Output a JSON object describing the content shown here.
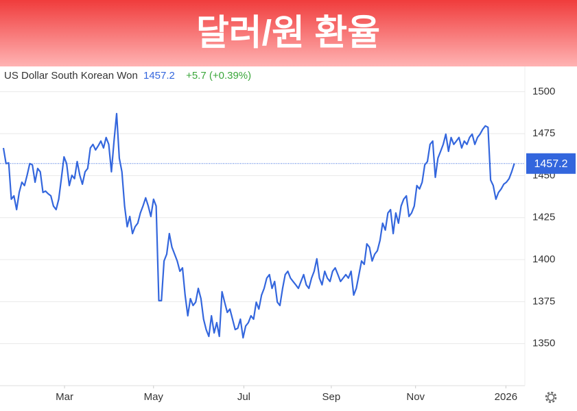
{
  "chart_data": {
    "type": "line",
    "title": "달러/원 환율",
    "change": "+5.7 (+0.39%)",
    "series": [
      {
        "name": "US Dollar South Korean Won",
        "color": "#3366dd",
        "values": [
          1466.5,
          1457.2,
          1457.6,
          1436.0,
          1438.0,
          1429.8,
          1440.0,
          1446.1,
          1444.1,
          1450.2,
          1457.2,
          1456.4,
          1446.1,
          1454.3,
          1452.3,
          1440.0,
          1440.8,
          1439.2,
          1438.0,
          1431.9,
          1429.8,
          1436.0,
          1448.2,
          1461.2,
          1457.2,
          1444.1,
          1450.2,
          1448.2,
          1458.4,
          1450.2,
          1444.9,
          1452.3,
          1454.3,
          1466.5,
          1468.6,
          1465.3,
          1467.8,
          1470.6,
          1466.5,
          1472.7,
          1468.6,
          1452.3,
          1470.6,
          1486.9,
          1460.4,
          1452.3,
          1431.9,
          1419.6,
          1425.7,
          1415.5,
          1419.6,
          1421.7,
          1427.8,
          1431.9,
          1436.8,
          1431.9,
          1425.7,
          1436.0,
          1431.9,
          1375.6,
          1375.6,
          1399.2,
          1403.3,
          1415.5,
          1407.4,
          1403.3,
          1399.2,
          1393.1,
          1395.1,
          1378.9,
          1366.6,
          1376.8,
          1372.7,
          1374.7,
          1382.9,
          1376.8,
          1364.6,
          1358.4,
          1354.3,
          1366.6,
          1356.4,
          1362.5,
          1354.3,
          1380.9,
          1374.7,
          1368.6,
          1370.6,
          1364.6,
          1358.4,
          1359.2,
          1364.6,
          1353.5,
          1360.5,
          1362.5,
          1366.6,
          1364.6,
          1374.7,
          1370.6,
          1378.9,
          1382.9,
          1389.0,
          1391.1,
          1382.9,
          1387.0,
          1374.7,
          1372.7,
          1382.9,
          1391.1,
          1393.1,
          1389.0,
          1387.0,
          1385.0,
          1382.9,
          1387.0,
          1391.1,
          1385.0,
          1382.9,
          1389.0,
          1393.1,
          1400.5,
          1389.0,
          1385.0,
          1393.1,
          1389.0,
          1387.0,
          1393.1,
          1395.1,
          1391.1,
          1387.0,
          1389.0,
          1391.1,
          1389.0,
          1393.1,
          1378.9,
          1382.9,
          1391.1,
          1399.2,
          1397.2,
          1409.4,
          1407.4,
          1399.2,
          1403.3,
          1405.3,
          1411.5,
          1421.7,
          1417.6,
          1427.8,
          1429.8,
          1415.5,
          1427.8,
          1421.7,
          1431.9,
          1436.0,
          1438.0,
          1425.7,
          1427.8,
          1431.9,
          1444.1,
          1442.1,
          1446.1,
          1456.4,
          1458.4,
          1468.6,
          1470.6,
          1449.0,
          1460.4,
          1464.5,
          1468.6,
          1474.7,
          1464.5,
          1472.7,
          1468.6,
          1470.6,
          1472.7,
          1466.5,
          1470.6,
          1468.6,
          1472.7,
          1474.7,
          1468.6,
          1472.7,
          1474.7,
          1477.6,
          1479.6,
          1478.8,
          1447.4,
          1444.1,
          1436.0,
          1440.0,
          1442.1,
          1444.9,
          1446.1,
          1448.2,
          1452.3,
          1457.2
        ]
      }
    ],
    "xlim": [
      -1.3,
      198
    ],
    "xticks": [
      {
        "value": 23.2,
        "label": "Mar"
      },
      {
        "value": 57,
        "label": "May"
      },
      {
        "value": 91.3,
        "label": "Jul"
      },
      {
        "value": 124.5,
        "label": "Sep"
      },
      {
        "value": 156.5,
        "label": "Nov"
      },
      {
        "value": 190.8,
        "label": "2026"
      }
    ],
    "ylim": [
      1325,
      1515
    ],
    "yticks": [
      1350,
      1375,
      1400,
      1425,
      1450,
      1475,
      1500
    ],
    "grid": true
  }
}
